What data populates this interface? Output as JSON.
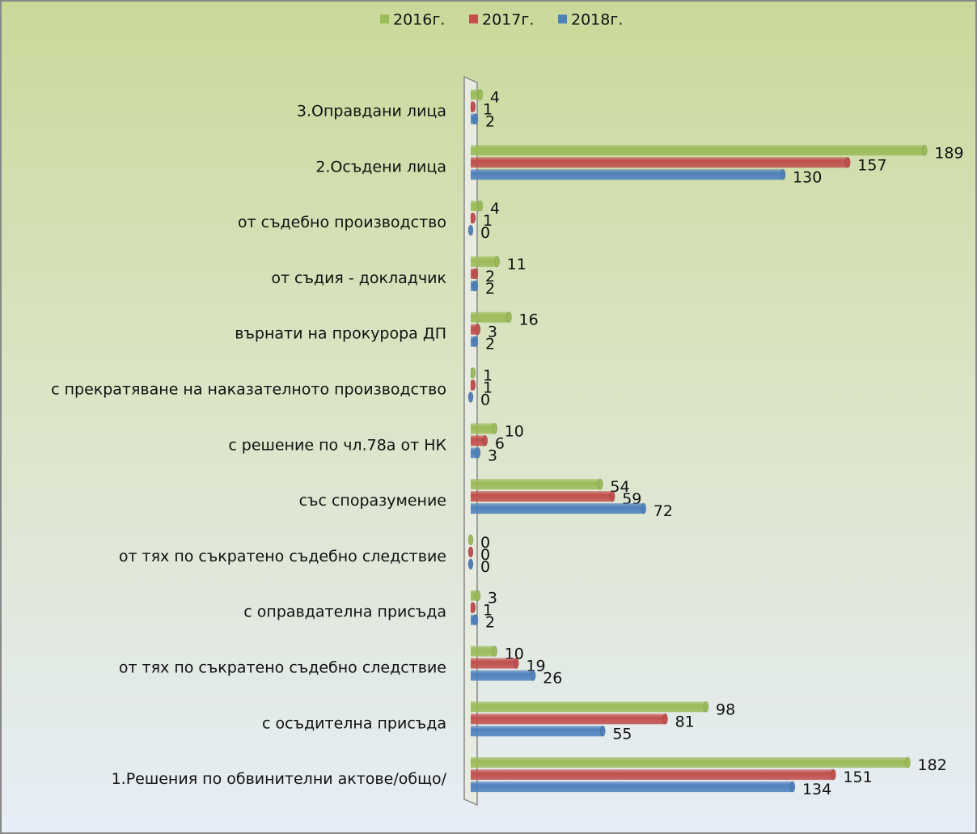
{
  "chart_data": {
    "type": "bar",
    "orientation": "horizontal",
    "categories": [
      "3.Оправдани лица",
      "2.Осъдени лица",
      "от съдебно производство",
      "от съдия - докладчик",
      "върнати на прокурора ДП",
      "с прекратяване на наказателното производство",
      "с решение по чл.78а от НК",
      "със споразумение",
      "от тях по съкратено съдебно следствие",
      "с оправдателна присъда",
      "от тях по съкратено съдебно следствие",
      "с осъдителна присъда",
      "1.Решения по обвинителни актове/общо/"
    ],
    "series": [
      {
        "name": "2016г.",
        "color": "#9bbb59",
        "values": [
          4,
          189,
          4,
          11,
          16,
          1,
          10,
          54,
          0,
          3,
          10,
          98,
          182
        ]
      },
      {
        "name": "2017г.",
        "color": "#c0504d",
        "values": [
          1,
          157,
          1,
          2,
          3,
          1,
          6,
          59,
          0,
          1,
          19,
          81,
          151
        ]
      },
      {
        "name": "2018г.",
        "color": "#4f81bd",
        "values": [
          2,
          130,
          0,
          2,
          2,
          0,
          3,
          72,
          0,
          2,
          26,
          55,
          134
        ]
      }
    ],
    "xlim": [
      0,
      200
    ],
    "legend": "top"
  }
}
